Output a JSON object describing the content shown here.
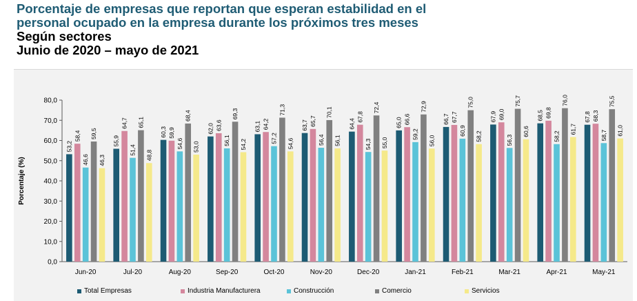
{
  "title": {
    "line1": "Porcentaje de empresas que reportan que esperan estabilidad en el",
    "line2": "personal ocupado en la empresa durante los próximos tres meses",
    "line3": "Según sectores",
    "line4": "Junio de 2020 – mayo de 2021"
  },
  "colors": {
    "series": [
      "#1d5b73",
      "#d4879d",
      "#5bc3d8",
      "#808080",
      "#f5e98a"
    ]
  },
  "chart_data": {
    "type": "bar",
    "title": "Porcentaje de empresas que reportan que esperan estabilidad en el personal ocupado en la empresa durante los próximos tres meses",
    "ylabel": "Porcentaje (%)",
    "xlabel": "",
    "ylim": [
      0,
      80
    ],
    "yticks": [
      "0,0",
      "10,0",
      "20,0",
      "30,0",
      "40,0",
      "50,0",
      "60,0",
      "70,0",
      "80,0"
    ],
    "grid": false,
    "legend_position": "bottom",
    "categories": [
      "Jun-20",
      "Jul-20",
      "Aug-20",
      "Sep-20",
      "Oct-20",
      "Nov-20",
      "Dec-20",
      "Jan-21",
      "Feb-21",
      "Mar-21",
      "Apr-21",
      "May-21"
    ],
    "series": [
      {
        "name": "Total Empresas",
        "values": [
          53.2,
          55.9,
          60.3,
          62.0,
          63.1,
          63.7,
          64.4,
          65.0,
          66.7,
          67.9,
          68.5,
          67.8
        ],
        "labels": [
          "53,2",
          "55,9",
          "60,3",
          "62,0",
          "63,1",
          "63,7",
          "64,4",
          "65,0",
          "66,7",
          "67,9",
          "68,5",
          "67,8"
        ]
      },
      {
        "name": "Industria Manufacturera",
        "values": [
          58.4,
          64.7,
          59.9,
          63.6,
          64.2,
          65.7,
          67.8,
          66.6,
          67.7,
          69.0,
          69.8,
          68.3
        ],
        "labels": [
          "58,4",
          "64,7",
          "59,9",
          "63,6",
          "64,2",
          "65,7",
          "67,8",
          "66,6",
          "67,7",
          "69,0",
          "69,8",
          "68,3"
        ]
      },
      {
        "name": "Construcción",
        "values": [
          46.6,
          51.4,
          54.6,
          56.1,
          57.2,
          56.4,
          54.3,
          59.2,
          60.9,
          56.3,
          58.2,
          58.7
        ],
        "labels": [
          "46,6",
          "51,4",
          "54,6",
          "56,1",
          "57,2",
          "56,4",
          "54,3",
          "59,2",
          "60,9",
          "56,3",
          "58,2",
          "58,7"
        ]
      },
      {
        "name": "Comercio",
        "values": [
          59.5,
          65.1,
          68.4,
          69.3,
          71.3,
          70.1,
          72.4,
          72.9,
          75.0,
          75.7,
          76.0,
          75.5
        ],
        "labels": [
          "59,5",
          "65,1",
          "68,4",
          "69,3",
          "71,3",
          "70,1",
          "72,4",
          "72,9",
          "75,0",
          "75,7",
          "76,0",
          "75,5"
        ]
      },
      {
        "name": "Servicios",
        "values": [
          46.3,
          48.8,
          53.0,
          54.2,
          54.6,
          56.1,
          55.0,
          56.0,
          58.2,
          60.6,
          61.7,
          61.0
        ],
        "labels": [
          "46,3",
          "48,8",
          "53,0",
          "54,2",
          "54,6",
          "56,1",
          "55,0",
          "56,0",
          "58,2",
          "60,6",
          "61,7",
          "61,0"
        ]
      }
    ]
  }
}
